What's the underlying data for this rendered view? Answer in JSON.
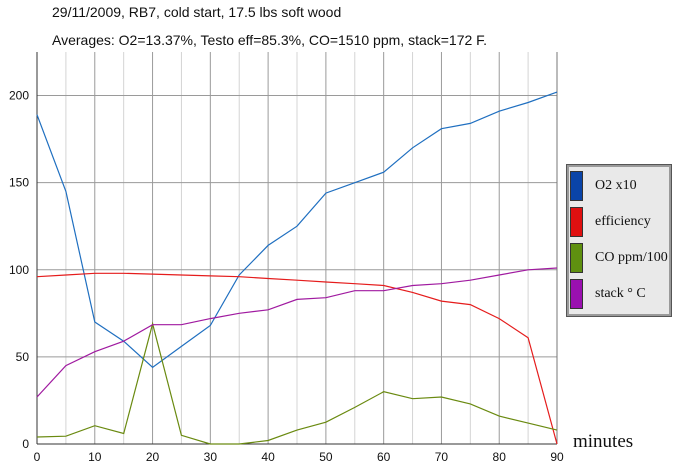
{
  "header": {
    "line1": "29/11/2009, RB7, cold start, 17.5 lbs soft wood",
    "line2": "Averages: O2=13.37%, Testo eff=85.3%, CO=1510 ppm, stack=172 F."
  },
  "chart_data": {
    "type": "line",
    "title": "",
    "xlabel": "minutes",
    "ylabel": "",
    "xlim": [
      0,
      90
    ],
    "ylim": [
      0,
      225
    ],
    "xticks": [
      0,
      10,
      20,
      30,
      40,
      50,
      60,
      70,
      80,
      90
    ],
    "yticks": [
      0,
      50,
      100,
      150,
      200
    ],
    "grid": true,
    "legend_position": "right",
    "x": [
      0,
      5,
      10,
      15,
      20,
      25,
      30,
      35,
      40,
      45,
      50,
      55,
      60,
      65,
      70,
      75,
      80,
      85,
      90
    ],
    "series": [
      {
        "name": "O2 x10",
        "color": "#1f6fc0",
        "swatch": "#0a44a8",
        "values": [
          189,
          145,
          70,
          59,
          44,
          56,
          68,
          97,
          114,
          125,
          144,
          150,
          156,
          170,
          181,
          184,
          191,
          196,
          202
        ]
      },
      {
        "name": "efficiency",
        "color": "#e51c1c",
        "swatch": "#e01010",
        "values": [
          96,
          97,
          98,
          98,
          97.5,
          97,
          96.5,
          96,
          95,
          94,
          93,
          92,
          91,
          87,
          82,
          80,
          72,
          61,
          0
        ]
      },
      {
        "name": "CO ppm/100",
        "color": "#6a8a10",
        "swatch": "#5f9010",
        "values": [
          4,
          4.5,
          10.5,
          6,
          69,
          5,
          0,
          0,
          2,
          8,
          12.5,
          21,
          30,
          26,
          27,
          23,
          16,
          12,
          8
        ]
      },
      {
        "name": "stack ° C",
        "color": "#a01aa0",
        "swatch": "#9a10b0",
        "values": [
          27,
          45,
          53,
          59,
          68.5,
          68.5,
          72,
          75,
          77,
          83,
          84,
          88,
          88,
          91,
          92,
          94,
          97,
          100,
          101
        ]
      }
    ]
  }
}
